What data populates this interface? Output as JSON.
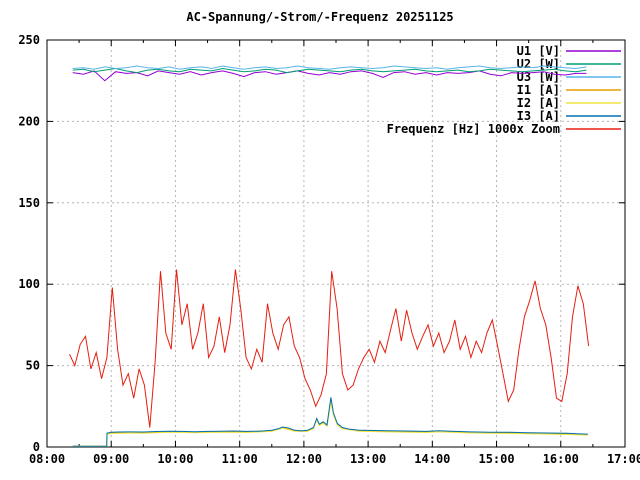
{
  "chart_data": {
    "type": "line",
    "title": "AC-Spannung/-Strom/-Frequenz 20251125",
    "xlabel": "",
    "ylabel": "",
    "xlim": [
      8,
      17
    ],
    "ylim": [
      0,
      250
    ],
    "grid": true,
    "legend_position": "top-right-inside",
    "x_ticks": [
      8,
      9,
      10,
      11,
      12,
      13,
      14,
      15,
      16,
      17
    ],
    "x_tick_labels": [
      "08:00",
      "09:00",
      "10:00",
      "11:00",
      "12:00",
      "13:00",
      "14:00",
      "15:00",
      "16:00",
      "17:00"
    ],
    "x_minor_ticks": [
      8.5,
      9.5,
      10.5,
      11.5,
      12.5,
      13.5,
      14.5,
      15.5,
      16.5
    ],
    "y_ticks": [
      0,
      50,
      100,
      150,
      200,
      250
    ],
    "y_tick_labels": [
      "0",
      "50",
      "100",
      "150",
      "200",
      "250"
    ],
    "series": [
      {
        "name": "U1 [V]",
        "color": "#9400d3",
        "x0": 8.4,
        "dx": 0.166667,
        "values": [
          230,
          229,
          231,
          225,
          230.5,
          229.5,
          230,
          228,
          231,
          230,
          229,
          230.5,
          228.5,
          230,
          231,
          229.5,
          227.5,
          230,
          230.5,
          229,
          230,
          231,
          229.5,
          228.5,
          230,
          229,
          230.5,
          231,
          229.5,
          227,
          230,
          230.5,
          229,
          230,
          228.5,
          230,
          229.5,
          230,
          231,
          229,
          228,
          230,
          229.5,
          230,
          230.5,
          229,
          228.5,
          229.5,
          229.5
        ]
      },
      {
        "name": "U2 [W]",
        "color": "#009e73",
        "x0": 8.4,
        "dx": 0.166667,
        "values": [
          231.5,
          232,
          230.5,
          231.5,
          232.5,
          231,
          230,
          231.5,
          232,
          231,
          230.5,
          232,
          231.5,
          231,
          232.5,
          231.5,
          230.5,
          231,
          232,
          231.5,
          230,
          231,
          232,
          231.5,
          231,
          230.5,
          231.5,
          232,
          231,
          230.5,
          231,
          231.5,
          232,
          231,
          230.5,
          231,
          231.5,
          230.5,
          231,
          232,
          231.5,
          231,
          230.5,
          231,
          231.5,
          232,
          231,
          230.5,
          231.5
        ]
      },
      {
        "name": "U3 [W]",
        "color": "#56b4e9",
        "x0": 8.4,
        "dx": 0.166667,
        "values": [
          232.5,
          233,
          232,
          233.5,
          232.5,
          233,
          234,
          233,
          232.5,
          233.5,
          232,
          233,
          233.5,
          232.5,
          234,
          233,
          232,
          233,
          233.5,
          232.5,
          233,
          234,
          233,
          232.5,
          232,
          233,
          233.5,
          233,
          232.5,
          233,
          234,
          233.5,
          233,
          232.5,
          233,
          232,
          233,
          233.5,
          234,
          233,
          232.5,
          233,
          233.5,
          233,
          234,
          233.5,
          233,
          232.5,
          233.5
        ]
      },
      {
        "name": "I1 [A]",
        "color": "#e69f00",
        "points": [
          [
            8.4,
            0.45
          ],
          [
            8.93,
            0.45
          ],
          [
            8.935,
            8.1
          ],
          [
            9.0,
            8.7
          ],
          [
            9.5,
            8.9
          ],
          [
            10.0,
            9.3
          ],
          [
            10.5,
            9.2
          ],
          [
            11.0,
            9.3
          ],
          [
            11.5,
            10.0
          ],
          [
            11.67,
            12.0
          ],
          [
            11.85,
            10.1
          ],
          [
            12.05,
            9.9
          ],
          [
            12.15,
            11.6
          ],
          [
            12.2,
            17.0
          ],
          [
            12.24,
            13.6
          ],
          [
            12.3,
            15.0
          ],
          [
            12.36,
            13.1
          ],
          [
            12.42,
            29.0
          ],
          [
            12.46,
            20.2
          ],
          [
            12.52,
            14.0
          ],
          [
            12.6,
            11.6
          ],
          [
            12.85,
            10.0
          ],
          [
            13.3,
            9.7
          ],
          [
            13.9,
            9.3
          ],
          [
            14.3,
            9.4
          ],
          [
            14.9,
            8.9
          ],
          [
            15.5,
            8.6
          ],
          [
            16.1,
            8.2
          ],
          [
            16.42,
            7.6
          ]
        ]
      },
      {
        "name": "I2 [A]",
        "color": "#f0e442",
        "points": [
          [
            8.4,
            0.4
          ],
          [
            8.93,
            0.4
          ],
          [
            8.935,
            7.8
          ],
          [
            9.0,
            8.3
          ],
          [
            9.3,
            8.6
          ],
          [
            9.5,
            8.5
          ],
          [
            9.9,
            9.0
          ],
          [
            10.3,
            8.8
          ],
          [
            10.7,
            9.0
          ],
          [
            11.1,
            8.9
          ],
          [
            11.5,
            9.6
          ],
          [
            11.67,
            11.6
          ],
          [
            11.85,
            9.7
          ],
          [
            12.05,
            9.5
          ],
          [
            12.15,
            11.2
          ],
          [
            12.2,
            16.5
          ],
          [
            12.24,
            13.2
          ],
          [
            12.3,
            14.6
          ],
          [
            12.36,
            12.8
          ],
          [
            12.42,
            27.5
          ],
          [
            12.46,
            19.5
          ],
          [
            12.52,
            13.6
          ],
          [
            12.6,
            11.2
          ],
          [
            12.85,
            9.7
          ],
          [
            13.3,
            9.3
          ],
          [
            13.6,
            9.1
          ],
          [
            13.9,
            8.9
          ],
          [
            14.1,
            9.3
          ],
          [
            14.6,
            8.6
          ],
          [
            15.2,
            8.3
          ],
          [
            15.8,
            7.9
          ],
          [
            16.25,
            7.5
          ],
          [
            16.42,
            7.2
          ]
        ]
      },
      {
        "name": "I3 [A]",
        "color": "#0072b2",
        "points": [
          [
            8.4,
            0.5
          ],
          [
            8.93,
            0.5
          ],
          [
            8.935,
            8.5
          ],
          [
            9.0,
            9.0
          ],
          [
            9.1,
            9.2
          ],
          [
            9.3,
            9.3
          ],
          [
            9.5,
            9.2
          ],
          [
            9.7,
            9.5
          ],
          [
            9.9,
            9.7
          ],
          [
            10.1,
            9.6
          ],
          [
            10.3,
            9.4
          ],
          [
            10.5,
            9.6
          ],
          [
            10.7,
            9.7
          ],
          [
            10.9,
            9.8
          ],
          [
            11.1,
            9.6
          ],
          [
            11.3,
            9.7
          ],
          [
            11.5,
            10.3
          ],
          [
            11.6,
            11.2
          ],
          [
            11.67,
            12.3
          ],
          [
            11.75,
            11.8
          ],
          [
            11.85,
            10.4
          ],
          [
            11.95,
            9.9
          ],
          [
            12.05,
            10.2
          ],
          [
            12.15,
            12.0
          ],
          [
            12.2,
            17.5
          ],
          [
            12.24,
            14.0
          ],
          [
            12.3,
            15.5
          ],
          [
            12.36,
            13.5
          ],
          [
            12.42,
            30.5
          ],
          [
            12.46,
            21.0
          ],
          [
            12.52,
            14.5
          ],
          [
            12.6,
            12.0
          ],
          [
            12.7,
            11.0
          ],
          [
            12.85,
            10.4
          ],
          [
            13.0,
            10.2
          ],
          [
            13.3,
            10.0
          ],
          [
            13.6,
            9.8
          ],
          [
            13.9,
            9.6
          ],
          [
            14.1,
            10.0
          ],
          [
            14.3,
            9.7
          ],
          [
            14.6,
            9.3
          ],
          [
            14.9,
            9.1
          ],
          [
            15.2,
            9.0
          ],
          [
            15.5,
            8.8
          ],
          [
            15.8,
            8.6
          ],
          [
            16.1,
            8.4
          ],
          [
            16.25,
            8.2
          ],
          [
            16.42,
            7.9
          ]
        ]
      },
      {
        "name": "Frequenz [Hz] 1000x Zoom",
        "color": "#e51e10",
        "x0": 8.35,
        "dx": 0.083333,
        "values": [
          57,
          50,
          63,
          68,
          48,
          58,
          42,
          55,
          98,
          60,
          38,
          45,
          30,
          48,
          38,
          12,
          52,
          108,
          70,
          60,
          109,
          75,
          88,
          60,
          70,
          88,
          55,
          62,
          80,
          58,
          75,
          109,
          85,
          55,
          48,
          60,
          52,
          88,
          70,
          60,
          75,
          80,
          62,
          55,
          42,
          35,
          25,
          32,
          45,
          108,
          85,
          45,
          35,
          38,
          48,
          55,
          60,
          52,
          65,
          58,
          72,
          85,
          65,
          84,
          70,
          60,
          68,
          75,
          62,
          70,
          58,
          65,
          78,
          60,
          68,
          55,
          65,
          58,
          70,
          78,
          62,
          45,
          28,
          35,
          60,
          80,
          90,
          102,
          85,
          75,
          55,
          30,
          28,
          45,
          80,
          99,
          88,
          62
        ]
      }
    ],
    "colors": {
      "grid": "#b5b5b5",
      "axis": "#000000",
      "background": "#ffffff"
    }
  }
}
